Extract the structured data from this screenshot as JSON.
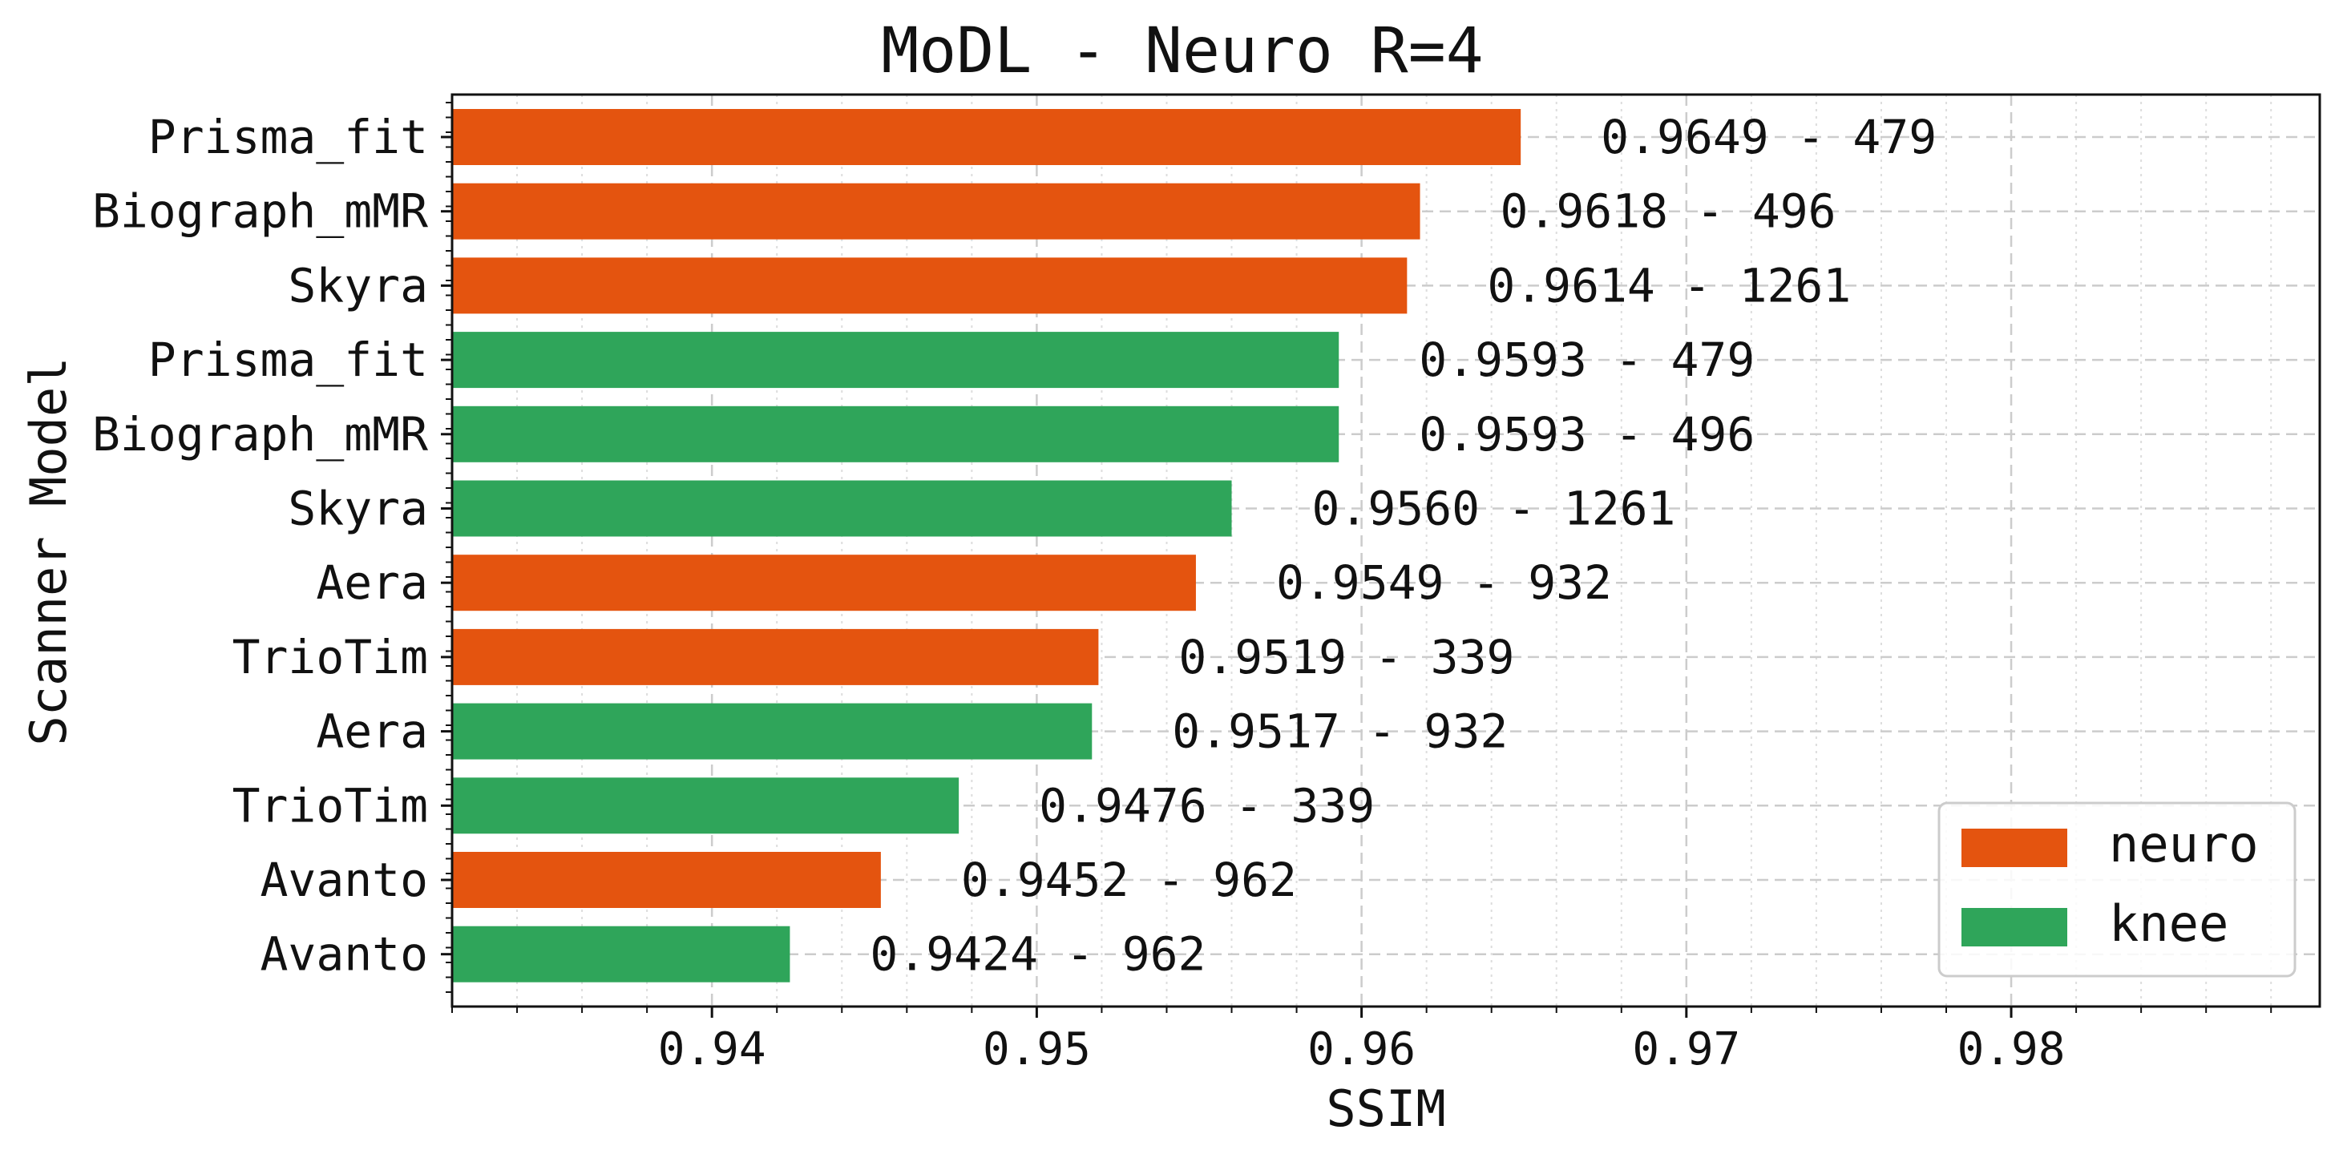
{
  "chart_data": {
    "type": "bar",
    "orientation": "horizontal",
    "title": "MoDL - Neuro R=4",
    "xlabel": "SSIM",
    "ylabel": "Scanner Model",
    "xlim": [
      0.932,
      0.9895
    ],
    "xticks": [
      0.94,
      0.95,
      0.96,
      0.97,
      0.98
    ],
    "xtick_labels": [
      "0.94",
      "0.95",
      "0.96",
      "0.97",
      "0.98"
    ],
    "grid": true,
    "legend": {
      "placement": "lower-right",
      "entries": [
        {
          "label": "neuro",
          "color": "#E4540F"
        },
        {
          "label": "knee",
          "color": "#2FA55A"
        }
      ]
    },
    "bars": [
      {
        "category": "Prisma_fit",
        "group": "neuro",
        "value": 0.9649,
        "label": "0.9649 - 479"
      },
      {
        "category": "Biograph_mMR",
        "group": "neuro",
        "value": 0.9618,
        "label": "0.9618 - 496"
      },
      {
        "category": "Skyra",
        "group": "neuro",
        "value": 0.9614,
        "label": "0.9614 - 1261"
      },
      {
        "category": "Prisma_fit",
        "group": "knee",
        "value": 0.9593,
        "label": "0.9593 - 479"
      },
      {
        "category": "Biograph_mMR",
        "group": "knee",
        "value": 0.9593,
        "label": "0.9593 - 496"
      },
      {
        "category": "Skyra",
        "group": "knee",
        "value": 0.956,
        "label": "0.9560 - 1261"
      },
      {
        "category": "Aera",
        "group": "neuro",
        "value": 0.9549,
        "label": "0.9549 - 932"
      },
      {
        "category": "TrioTim",
        "group": "neuro",
        "value": 0.9519,
        "label": "0.9519 - 339"
      },
      {
        "category": "Aera",
        "group": "knee",
        "value": 0.9517,
        "label": "0.9517 - 932"
      },
      {
        "category": "TrioTim",
        "group": "knee",
        "value": 0.9476,
        "label": "0.9476 - 339"
      },
      {
        "category": "Avanto",
        "group": "neuro",
        "value": 0.9452,
        "label": "0.9452 - 962"
      },
      {
        "category": "Avanto",
        "group": "knee",
        "value": 0.9424,
        "label": "0.9424 - 962"
      }
    ]
  }
}
